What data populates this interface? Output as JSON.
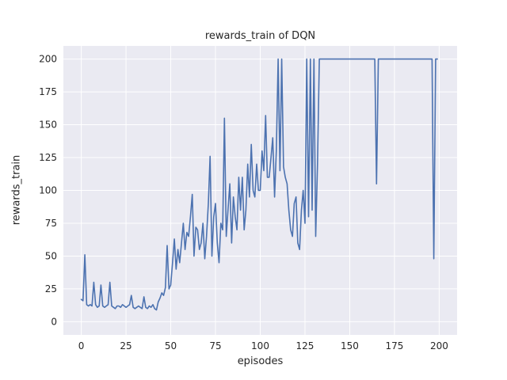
{
  "chart_data": {
    "type": "line",
    "title": "rewards_train of DQN",
    "xlabel": "episodes",
    "ylabel": "rewards_train",
    "series_name": "rewards_train",
    "x_start": 0,
    "x_step": 1,
    "values": [
      17,
      16,
      51,
      13,
      12,
      13,
      12,
      30,
      13,
      11,
      12,
      28,
      12,
      11,
      12,
      13,
      30,
      12,
      11,
      10,
      12,
      12,
      11,
      13,
      12,
      11,
      12,
      13,
      20,
      11,
      10,
      11,
      12,
      11,
      10,
      19,
      11,
      10,
      12,
      11,
      13,
      10,
      9,
      15,
      18,
      22,
      20,
      26,
      58,
      25,
      28,
      45,
      63,
      40,
      55,
      45,
      60,
      75,
      55,
      68,
      65,
      80,
      97,
      50,
      72,
      70,
      55,
      60,
      75,
      48,
      65,
      90,
      126,
      50,
      80,
      90,
      60,
      45,
      75,
      70,
      155,
      65,
      85,
      105,
      60,
      95,
      80,
      70,
      110,
      85,
      110,
      70,
      85,
      120,
      95,
      135,
      100,
      95,
      120,
      100,
      100,
      130,
      115,
      157,
      110,
      110,
      125,
      140,
      95,
      130,
      200,
      115,
      200,
      118,
      110,
      105,
      85,
      70,
      65,
      90,
      95,
      60,
      55,
      85,
      100,
      75,
      200,
      80,
      200,
      85,
      200,
      65,
      120,
      200,
      200,
      200,
      200,
      200,
      200,
      200,
      200,
      200,
      200,
      200,
      200,
      200,
      200,
      200,
      200,
      200,
      200,
      200,
      200,
      200,
      200,
      200,
      200,
      200,
      200,
      200,
      200,
      200,
      200,
      200,
      200,
      105,
      200,
      200,
      200,
      200,
      200,
      200,
      200,
      200,
      200,
      200,
      200,
      200,
      200,
      200,
      200,
      200,
      200,
      200,
      200,
      200,
      200,
      200,
      200,
      200,
      200,
      200,
      200,
      200,
      200,
      200,
      200,
      48,
      200,
      200
    ],
    "xlim": [
      -10,
      210
    ],
    "ylim": [
      -10,
      210
    ],
    "xticks": [
      0,
      25,
      50,
      75,
      100,
      125,
      150,
      175,
      200
    ],
    "yticks": [
      0,
      25,
      50,
      75,
      100,
      125,
      150,
      175,
      200
    ],
    "grid": true,
    "legend_position": "none",
    "line_color": "#4c72b0",
    "plot_bg": "#eaeaf2",
    "grid_color": "#ffffff",
    "fig_bg": "#ffffff",
    "tick_color": "#262626"
  }
}
